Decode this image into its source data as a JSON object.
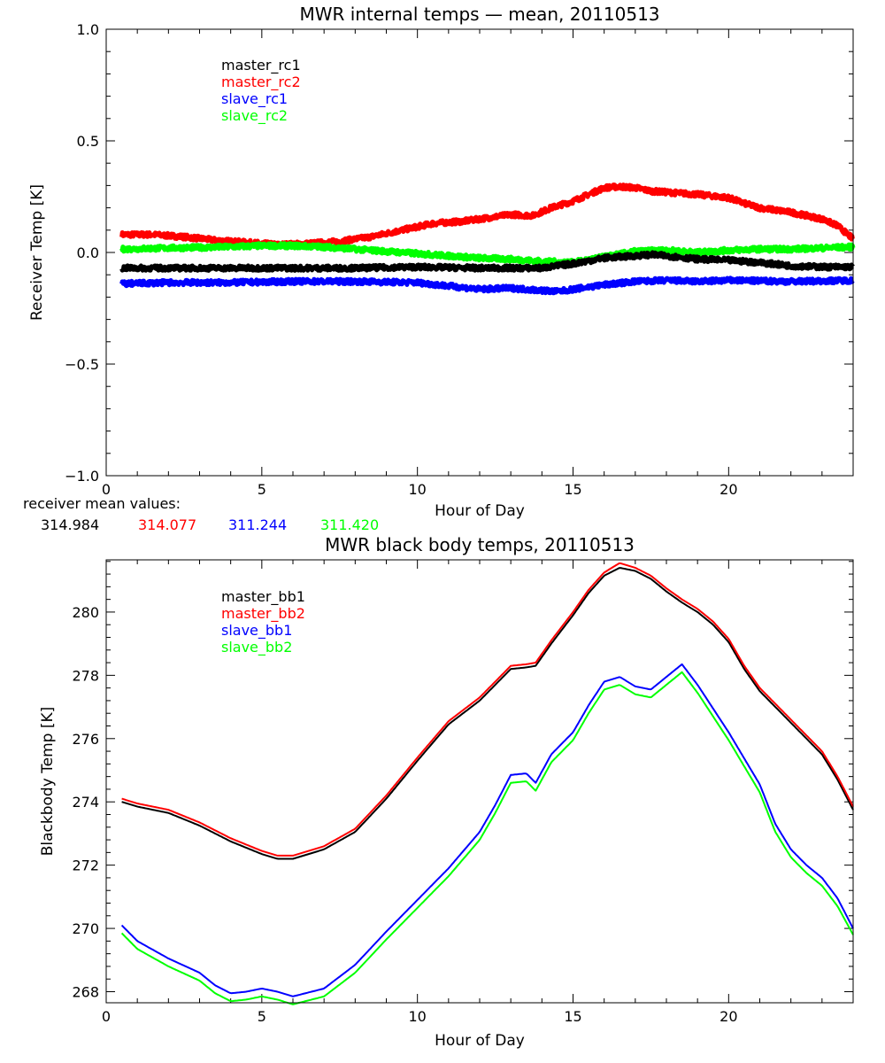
{
  "colors": {
    "black": "#000000",
    "red": "#ff0000",
    "blue": "#0000ff",
    "green": "#00ff00"
  },
  "mean_values": {
    "label": "receiver mean values:",
    "items": [
      {
        "text": "314.984",
        "color": "#000000"
      },
      {
        "text": "314.077",
        "color": "#ff0000"
      },
      {
        "text": "311.244",
        "color": "#0000ff"
      },
      {
        "text": "311.420",
        "color": "#00ff00"
      }
    ]
  },
  "chart_data": [
    {
      "type": "line",
      "title": "MWR internal temps — mean, 20110513",
      "xlabel": "Hour of Day",
      "ylabel": "Receiver Temp [K]",
      "xlim": [
        0,
        24
      ],
      "ylim": [
        -1.0,
        1.0
      ],
      "x_ticks": [
        0,
        5,
        10,
        15,
        20
      ],
      "x_tick_labels": [
        "0",
        "5",
        "10",
        "15",
        "20"
      ],
      "y_ticks": [
        -1.0,
        -0.5,
        0.0,
        0.5,
        1.0
      ],
      "y_tick_labels": [
        "−1.0",
        "−0.5",
        "0.0",
        "0.5",
        "1.0"
      ],
      "legend_position": "top-left",
      "noisy": true,
      "series": [
        {
          "name": "master_rc1",
          "color": "#000000",
          "points": [
            [
              0.5,
              -0.07
            ],
            [
              2,
              -0.07
            ],
            [
              4,
              -0.07
            ],
            [
              6,
              -0.07
            ],
            [
              8,
              -0.07
            ],
            [
              10,
              -0.065
            ],
            [
              12,
              -0.07
            ],
            [
              14,
              -0.07
            ],
            [
              15,
              -0.05
            ],
            [
              16,
              -0.025
            ],
            [
              17,
              -0.015
            ],
            [
              17.5,
              -0.01
            ],
            [
              18,
              -0.015
            ],
            [
              19,
              -0.03
            ],
            [
              20,
              -0.035
            ],
            [
              21,
              -0.045
            ],
            [
              22,
              -0.06
            ],
            [
              23,
              -0.065
            ],
            [
              24,
              -0.065
            ]
          ]
        },
        {
          "name": "master_rc2",
          "color": "#ff0000",
          "points": [
            [
              0.5,
              0.08
            ],
            [
              1.5,
              0.08
            ],
            [
              2.5,
              0.07
            ],
            [
              3.5,
              0.055
            ],
            [
              4.5,
              0.045
            ],
            [
              5.5,
              0.035
            ],
            [
              6.5,
              0.04
            ],
            [
              7.5,
              0.05
            ],
            [
              8.5,
              0.07
            ],
            [
              9.5,
              0.1
            ],
            [
              10.5,
              0.13
            ],
            [
              11.5,
              0.14
            ],
            [
              12.5,
              0.16
            ],
            [
              13,
              0.17
            ],
            [
              13.7,
              0.165
            ],
            [
              14.3,
              0.2
            ],
            [
              15,
              0.23
            ],
            [
              15.5,
              0.26
            ],
            [
              16,
              0.29
            ],
            [
              16.5,
              0.295
            ],
            [
              17,
              0.29
            ],
            [
              17.5,
              0.275
            ],
            [
              18,
              0.27
            ],
            [
              19,
              0.26
            ],
            [
              20,
              0.245
            ],
            [
              20.5,
              0.22
            ],
            [
              21,
              0.2
            ],
            [
              22,
              0.18
            ],
            [
              23,
              0.15
            ],
            [
              23.5,
              0.12
            ],
            [
              24,
              0.06
            ]
          ]
        },
        {
          "name": "slave_rc1",
          "color": "#0000ff",
          "points": [
            [
              0.5,
              -0.14
            ],
            [
              2,
              -0.135
            ],
            [
              4,
              -0.135
            ],
            [
              6,
              -0.13
            ],
            [
              8,
              -0.13
            ],
            [
              10,
              -0.135
            ],
            [
              11,
              -0.15
            ],
            [
              12,
              -0.165
            ],
            [
              13,
              -0.16
            ],
            [
              14,
              -0.17
            ],
            [
              14.5,
              -0.175
            ],
            [
              15,
              -0.165
            ],
            [
              16,
              -0.145
            ],
            [
              17,
              -0.13
            ],
            [
              18,
              -0.125
            ],
            [
              19,
              -0.13
            ],
            [
              20,
              -0.125
            ],
            [
              22,
              -0.13
            ],
            [
              24,
              -0.125
            ]
          ]
        },
        {
          "name": "slave_rc2",
          "color": "#00ff00",
          "points": [
            [
              0.5,
              0.015
            ],
            [
              2,
              0.02
            ],
            [
              4,
              0.025
            ],
            [
              5,
              0.03
            ],
            [
              6,
              0.03
            ],
            [
              7,
              0.025
            ],
            [
              8,
              0.015
            ],
            [
              9,
              0.005
            ],
            [
              10,
              -0.005
            ],
            [
              11,
              -0.015
            ],
            [
              12,
              -0.025
            ],
            [
              13,
              -0.03
            ],
            [
              14,
              -0.04
            ],
            [
              15,
              -0.045
            ],
            [
              16,
              -0.02
            ],
            [
              17,
              0.005
            ],
            [
              18,
              0.01
            ],
            [
              19,
              0.0
            ],
            [
              20,
              0.01
            ],
            [
              21,
              0.015
            ],
            [
              22,
              0.015
            ],
            [
              23,
              0.02
            ],
            [
              24,
              0.025
            ]
          ]
        }
      ]
    },
    {
      "type": "line",
      "title": "MWR black body temps, 20110513",
      "xlabel": "Hour of Day",
      "ylabel": "Blackbody Temp [K]",
      "xlim": [
        0,
        24
      ],
      "ylim": [
        267.65,
        281.65
      ],
      "x_ticks": [
        0,
        5,
        10,
        15,
        20
      ],
      "x_tick_labels": [
        "0",
        "5",
        "10",
        "15",
        "20"
      ],
      "y_ticks": [
        268,
        270,
        272,
        274,
        276,
        278,
        280
      ],
      "y_tick_labels": [
        "268",
        "270",
        "272",
        "274",
        "276",
        "278",
        "280"
      ],
      "legend_position": "top-left",
      "noisy": false,
      "series": [
        {
          "name": "master_bb1",
          "color": "#000000",
          "points": [
            [
              0.5,
              274.0
            ],
            [
              1,
              273.85
            ],
            [
              2,
              273.65
            ],
            [
              3,
              273.25
            ],
            [
              4,
              272.75
            ],
            [
              5,
              272.35
            ],
            [
              5.5,
              272.2
            ],
            [
              6,
              272.2
            ],
            [
              7,
              272.5
            ],
            [
              8,
              273.05
            ],
            [
              9,
              274.1
            ],
            [
              10,
              275.3
            ],
            [
              11,
              276.45
            ],
            [
              12,
              277.2
            ],
            [
              12.5,
              277.7
            ],
            [
              13,
              278.2
            ],
            [
              13.5,
              278.25
            ],
            [
              13.8,
              278.3
            ],
            [
              14.3,
              279.0
            ],
            [
              15,
              279.9
            ],
            [
              15.5,
              280.6
            ],
            [
              16,
              281.15
            ],
            [
              16.5,
              281.4
            ],
            [
              17,
              281.3
            ],
            [
              17.5,
              281.05
            ],
            [
              18,
              280.65
            ],
            [
              18.5,
              280.3
            ],
            [
              19,
              280.0
            ],
            [
              19.5,
              279.6
            ],
            [
              20,
              279.05
            ],
            [
              20.5,
              278.2
            ],
            [
              21,
              277.5
            ],
            [
              21.5,
              277.0
            ],
            [
              22,
              276.5
            ],
            [
              22.5,
              276.0
            ],
            [
              23,
              275.5
            ],
            [
              23.5,
              274.7
            ],
            [
              24,
              273.75
            ]
          ]
        },
        {
          "name": "master_bb2",
          "color": "#ff0000",
          "points": [
            [
              0.5,
              274.1
            ],
            [
              1,
              273.95
            ],
            [
              2,
              273.75
            ],
            [
              3,
              273.35
            ],
            [
              4,
              272.85
            ],
            [
              5,
              272.45
            ],
            [
              5.5,
              272.3
            ],
            [
              6,
              272.3
            ],
            [
              7,
              272.6
            ],
            [
              8,
              273.15
            ],
            [
              9,
              274.2
            ],
            [
              10,
              275.4
            ],
            [
              11,
              276.55
            ],
            [
              12,
              277.3
            ],
            [
              12.5,
              277.8
            ],
            [
              13,
              278.3
            ],
            [
              13.5,
              278.35
            ],
            [
              13.8,
              278.4
            ],
            [
              14.3,
              279.1
            ],
            [
              15,
              280.0
            ],
            [
              15.5,
              280.7
            ],
            [
              16,
              281.25
            ],
            [
              16.5,
              281.55
            ],
            [
              17,
              281.4
            ],
            [
              17.5,
              281.15
            ],
            [
              18,
              280.75
            ],
            [
              18.5,
              280.4
            ],
            [
              19,
              280.1
            ],
            [
              19.5,
              279.7
            ],
            [
              20,
              279.15
            ],
            [
              20.5,
              278.3
            ],
            [
              21,
              277.6
            ],
            [
              21.5,
              277.1
            ],
            [
              22,
              276.6
            ],
            [
              22.5,
              276.1
            ],
            [
              23,
              275.6
            ],
            [
              23.5,
              274.8
            ],
            [
              24,
              273.85
            ]
          ]
        },
        {
          "name": "slave_bb1",
          "color": "#0000ff",
          "points": [
            [
              0.5,
              270.1
            ],
            [
              1,
              269.6
            ],
            [
              2,
              269.05
            ],
            [
              3,
              268.6
            ],
            [
              3.5,
              268.2
            ],
            [
              4,
              267.95
            ],
            [
              4.5,
              268.0
            ],
            [
              5,
              268.1
            ],
            [
              5.5,
              268.0
            ],
            [
              6,
              267.85
            ],
            [
              7,
              268.1
            ],
            [
              8,
              268.85
            ],
            [
              9,
              269.9
            ],
            [
              10,
              270.9
            ],
            [
              11,
              271.9
            ],
            [
              12,
              273.05
            ],
            [
              12.5,
              273.9
            ],
            [
              13,
              274.85
            ],
            [
              13.5,
              274.9
            ],
            [
              13.8,
              274.6
            ],
            [
              14.3,
              275.5
            ],
            [
              15,
              276.2
            ],
            [
              15.5,
              277.05
            ],
            [
              16,
              277.8
            ],
            [
              16.5,
              277.95
            ],
            [
              17,
              277.65
            ],
            [
              17.5,
              277.55
            ],
            [
              18,
              277.95
            ],
            [
              18.5,
              278.35
            ],
            [
              19,
              277.7
            ],
            [
              19.5,
              276.95
            ],
            [
              20,
              276.2
            ],
            [
              21,
              274.55
            ],
            [
              21.5,
              273.3
            ],
            [
              22,
              272.5
            ],
            [
              22.5,
              272.0
            ],
            [
              23,
              271.6
            ],
            [
              23.5,
              270.95
            ],
            [
              24,
              270.0
            ]
          ]
        },
        {
          "name": "slave_bb2",
          "color": "#00ff00",
          "points": [
            [
              0.5,
              269.85
            ],
            [
              1,
              269.35
            ],
            [
              2,
              268.8
            ],
            [
              3,
              268.35
            ],
            [
              3.5,
              267.95
            ],
            [
              4,
              267.7
            ],
            [
              4.5,
              267.75
            ],
            [
              5,
              267.85
            ],
            [
              5.5,
              267.75
            ],
            [
              6,
              267.6
            ],
            [
              7,
              267.85
            ],
            [
              8,
              268.6
            ],
            [
              9,
              269.65
            ],
            [
              10,
              270.65
            ],
            [
              11,
              271.65
            ],
            [
              12,
              272.8
            ],
            [
              12.5,
              273.65
            ],
            [
              13,
              274.6
            ],
            [
              13.5,
              274.65
            ],
            [
              13.8,
              274.35
            ],
            [
              14.3,
              275.25
            ],
            [
              15,
              275.95
            ],
            [
              15.5,
              276.8
            ],
            [
              16,
              277.55
            ],
            [
              16.5,
              277.7
            ],
            [
              17,
              277.4
            ],
            [
              17.5,
              277.3
            ],
            [
              18,
              277.7
            ],
            [
              18.5,
              278.1
            ],
            [
              19,
              277.45
            ],
            [
              19.5,
              276.7
            ],
            [
              20,
              275.95
            ],
            [
              21,
              274.3
            ],
            [
              21.5,
              273.05
            ],
            [
              22,
              272.25
            ],
            [
              22.5,
              271.75
            ],
            [
              23,
              271.35
            ],
            [
              23.5,
              270.7
            ],
            [
              24,
              269.8
            ]
          ]
        }
      ]
    }
  ]
}
